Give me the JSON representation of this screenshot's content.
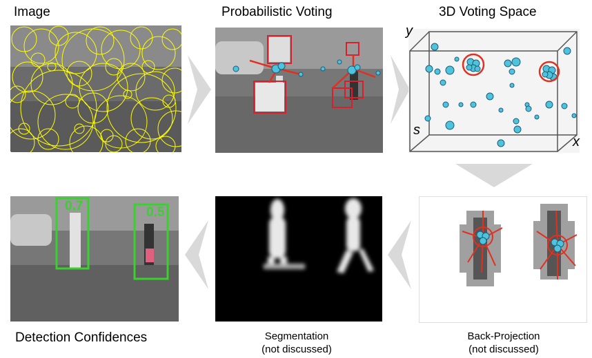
{
  "titles": {
    "image": "Image",
    "voting": "Probabilistic Voting",
    "space": "3D Voting Space",
    "detection": "Detection Confidences"
  },
  "captions": {
    "segmentation_line1": "Segmentation",
    "segmentation_line2": "(not discussed)",
    "backprojection_line1": "Back-Projection",
    "backprojection_line2": "(not discussed)"
  },
  "axes": {
    "y": "y",
    "s": "s",
    "x": "x"
  },
  "confidences": {
    "left": "0.7",
    "right": "0.5"
  },
  "colors": {
    "feature_circle": "#ffff00",
    "vote": "#4fc3dc",
    "patch_box": "#d9202a",
    "detection_box": "#39d12e",
    "arrow": "#d9d9d9"
  }
}
